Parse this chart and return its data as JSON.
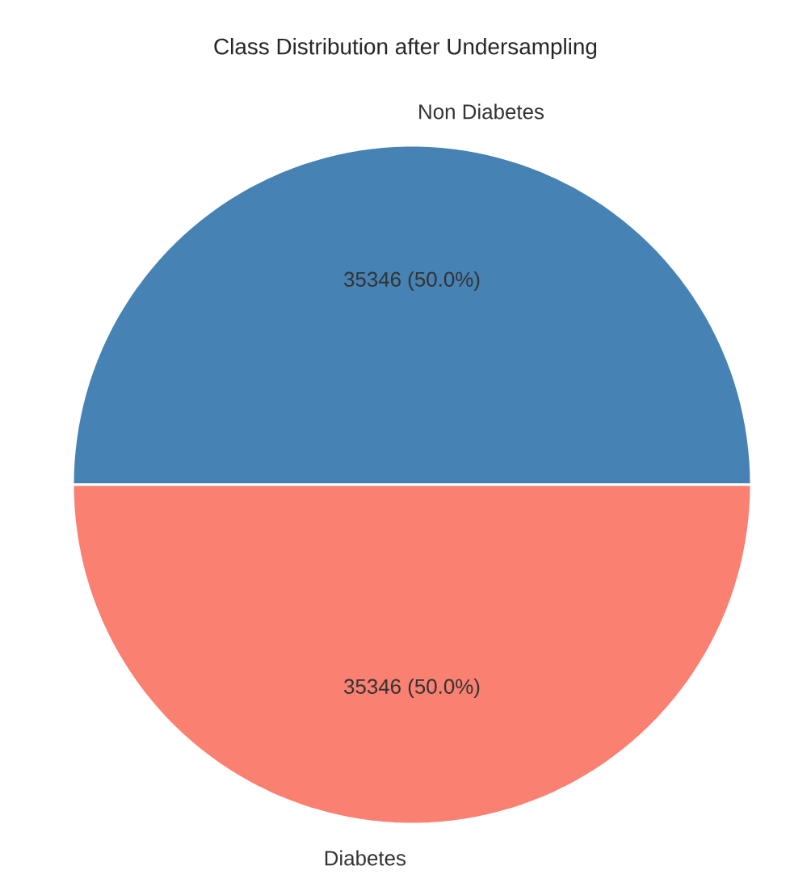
{
  "chart_data": {
    "type": "pie",
    "title": "Class Distribution after Undersampling",
    "categories": [
      "Non Diabetes",
      "Diabetes"
    ],
    "values": [
      35346,
      35346
    ],
    "colors": [
      "#4682b4",
      "#fa8072"
    ],
    "value_labels": [
      "35346 (50.0%)",
      "35346 (50.0%)"
    ]
  }
}
